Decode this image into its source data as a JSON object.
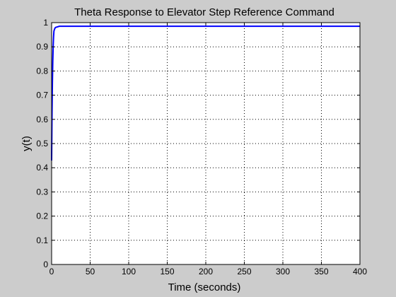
{
  "chart_data": {
    "type": "line",
    "title": "Theta Response to Elevator Step Reference Command",
    "xlabel": "Time (seconds)",
    "ylabel": "y(t)",
    "xlim": [
      0,
      400
    ],
    "ylim": [
      0,
      1
    ],
    "xticks": [
      0,
      50,
      100,
      150,
      200,
      250,
      300,
      350,
      400
    ],
    "xtick_labels": [
      "0",
      "50",
      "100",
      "150",
      "200",
      "250",
      "300",
      "350",
      "400"
    ],
    "yticks": [
      0,
      0.1,
      0.2,
      0.3,
      0.4,
      0.5,
      0.6,
      0.7,
      0.8,
      0.9,
      1
    ],
    "ytick_labels": [
      "0",
      "0.1",
      "0.2",
      "0.3",
      "0.4",
      "0.5",
      "0.6",
      "0.7",
      "0.8",
      "0.9",
      "1"
    ],
    "grid": true,
    "series": [
      {
        "color": "#0000ff",
        "x": [
          0,
          0.5,
          1,
          1.5,
          2,
          2.5,
          3,
          4,
          5,
          10,
          50,
          100,
          200,
          300,
          400
        ],
        "y": [
          0.43,
          0.62,
          0.75,
          0.84,
          0.9,
          0.94,
          0.965,
          0.975,
          0.98,
          0.985,
          0.985,
          0.985,
          0.985,
          0.985,
          0.985
        ]
      }
    ]
  }
}
